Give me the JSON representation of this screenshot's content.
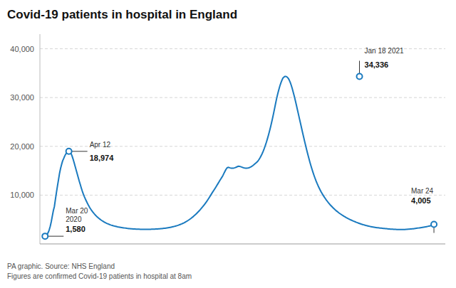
{
  "chart_data": {
    "type": "line",
    "title": "Covid-19 patients in hospital in England",
    "source": "PA graphic. Source: NHS England\nFigures are confirmed Covid-19 patients in hospital at 8am",
    "color": "#1a7abf",
    "xlim": [
      -5,
      387
    ],
    "ylim": [
      0,
      43000
    ],
    "yticks": [
      {
        "value": 10000,
        "label": "10,000"
      },
      {
        "value": 20000,
        "label": "20,000"
      },
      {
        "value": 30000,
        "label": "30,000"
      },
      {
        "value": 40000,
        "label": "40,000"
      }
    ],
    "grid": true,
    "tick_labels": "y",
    "annotations": [
      {
        "label": "Mar 20\n2020",
        "value_label": "1,580",
        "x": 0,
        "y": 1580
      },
      {
        "label": "Apr 12",
        "value_label": "18,974",
        "x": 23,
        "y": 18974
      },
      {
        "label": "Jan 18 2021",
        "value_label": "34,336",
        "x": 304,
        "y": 34336
      },
      {
        "label": "Mar 24",
        "value_label": "4,005",
        "x": 376,
        "y": 4005
      }
    ],
    "values": [
      1580,
      1741,
      1956,
      2322,
      2874,
      3603,
      4558,
      5702,
      6807,
      7654,
      9126,
      10542,
      11895,
      13180,
      14474,
      15498,
      16303,
      17035,
      17511,
      18024,
      18421,
      18682,
      18820,
      18974,
      18867,
      18554,
      18089,
      17443,
      16731,
      15952,
      15187,
      14432,
      13658,
      12897,
      12201,
      11482,
      10812,
      10211,
      9678,
      9187,
      8742,
      8301,
      7894,
      7521,
      7170,
      6855,
      6575,
      6315,
      6070,
      5836,
      5624,
      5428,
      5244,
      5078,
      4924,
      4776,
      4640,
      4514,
      4392,
      4281,
      4182,
      4090,
      4003,
      3924,
      3851,
      3784,
      3718,
      3661,
      3607,
      3558,
      3512,
      3470,
      3432,
      3396,
      3362,
      3330,
      3296,
      3262,
      3230,
      3200,
      3174,
      3150,
      3128,
      3108,
      3092,
      3078,
      3064,
      3051,
      3040,
      3030,
      3021,
      3013,
      3006,
      3000,
      2994,
      2990,
      2988,
      2987,
      2988,
      2990,
      2993,
      2997,
      3003,
      3009,
      3016,
      3024,
      3035,
      3047,
      3060,
      3075,
      3090,
      3107,
      3125,
      3145,
      3168,
      3192,
      3220,
      3250,
      3283,
      3318,
      3355,
      3395,
      3439,
      3485,
      3536,
      3590,
      3648,
      3710,
      3777,
      3850,
      3928,
      4010,
      4098,
      4192,
      4294,
      4403,
      4519,
      4643,
      4774,
      4914,
      5062,
      5218,
      5384,
      5556,
      5740,
      5930,
      6130,
      6338,
      6556,
      6782,
      7016,
      7260,
      7513,
      7776,
      8048,
      8331,
      8625,
      8932,
      9251,
      9583,
      9929,
      10280,
      10620,
      10940,
      11265,
      11595,
      11940,
      12300,
      12655,
      13000,
      13340,
      13680,
      14040,
      14480,
      14900,
      15300,
      15600,
      15700,
      15650,
      15580,
      15530,
      15510,
      15530,
      15580,
      15650,
      15740,
      15850,
      15920,
      15900,
      15830,
      15760,
      15680,
      15610,
      15560,
      15530,
      15520,
      15550,
      15600,
      15680,
      15790,
      15920,
      16080,
      16250,
      16430,
      16610,
      16800,
      17050,
      17350,
      17700,
      18100,
      18550,
      19050,
      19600,
      20200,
      20850,
      21550,
      22300,
      23100,
      23950,
      24850,
      25800,
      26800,
      27850,
      28900,
      29900,
      30800,
      31600,
      32350,
      33000,
      33550,
      34000,
      34200,
      34336,
      34330,
      34200,
      33980,
      33620,
      33140,
      32540,
      31840,
      31060,
      30230,
      29360,
      28450,
      27520,
      26580,
      25640,
      24700,
      23760,
      22820,
      21900,
      20990,
      20100,
      19240,
      18400,
      17590,
      16810,
      16070,
      15370,
      14700,
      14070,
      13480,
      12920,
      12400,
      11920,
      11470,
      11050,
      10650,
      10280,
      9930,
      9600,
      9290,
      8990,
      8710,
      8440,
      8190,
      7948,
      7720,
      7500,
      7292,
      7092,
      6904,
      6724,
      6552,
      6388,
      6232,
      6082,
      5940,
      5803,
      5672,
      5547,
      5425,
      5310,
      5197,
      5090,
      4985,
      4885,
      4785,
      4690,
      4600,
      4515,
      4430,
      4350,
      4272,
      4196,
      4122,
      4050,
      3982,
      3916,
      3855,
      3796,
      3741,
      3688,
      3638,
      3589,
      3543,
      3502,
      3463,
      3427,
      3393,
      3362,
      3332,
      3303,
      3278,
      3253,
      3228,
      3205,
      3183,
      3162,
      3141,
      3120,
      3099,
      3079,
      3060,
      3042,
      3025,
      3009,
      2995,
      2982,
      2970,
      2960,
      2952,
      2946,
      2943,
      2941,
      2943,
      2948,
      2955,
      2965,
      2979,
      2994,
      3010,
      3028,
      3047,
      3067,
      3090,
      3114,
      3140,
      3168,
      3197,
      3228,
      3260,
      3293,
      3327,
      3361,
      3396,
      3432,
      3469,
      3508,
      3549,
      3592,
      3637,
      3684,
      3734,
      3786,
      3841,
      4005
    ]
  }
}
